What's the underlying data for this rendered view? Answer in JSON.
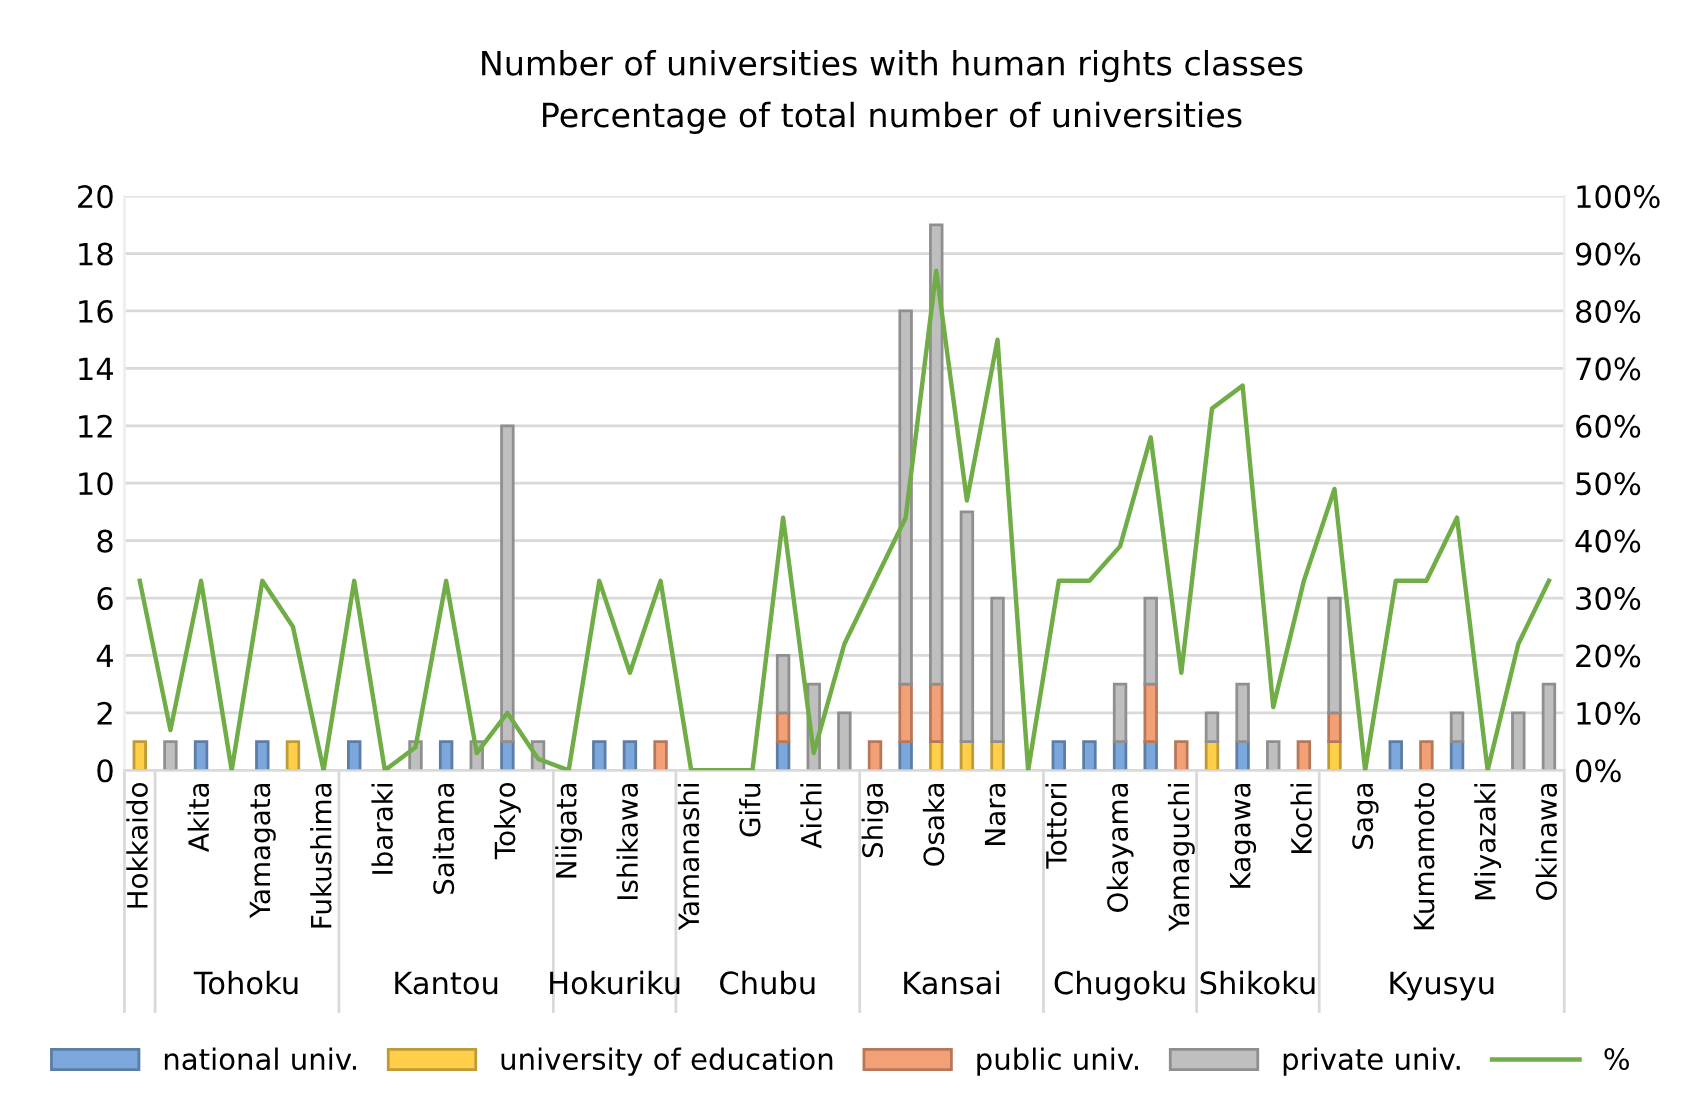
{
  "chart_data": {
    "type": "bar",
    "stacked": true,
    "title": "Number of universities with human rights classes",
    "subtitle": "Percentage of total number of universities",
    "categories": [
      "Hokkaido",
      null,
      "Akita",
      null,
      "Yamagata",
      null,
      "Fukushima",
      null,
      "Ibaraki",
      null,
      "Saitama",
      null,
      "Tokyo",
      null,
      "Niigata",
      null,
      "Ishikawa",
      null,
      "Yamanashi",
      null,
      "Gifu",
      null,
      "Aichi",
      null,
      "Shiga",
      null,
      "Osaka",
      null,
      "Nara",
      null,
      "Tottori",
      null,
      "Okayama",
      null,
      "Yamaguchi",
      null,
      "Kagawa",
      null,
      "Kochi",
      null,
      "Saga",
      null,
      "Kumamoto",
      null,
      "Miyazaki",
      null,
      "Okinawa"
    ],
    "series": [
      {
        "name": "national univ.",
        "color": "#7ba7dc",
        "values": [
          0,
          0,
          1,
          0,
          1,
          0,
          0,
          1,
          0,
          0,
          1,
          0,
          1,
          0,
          0,
          1,
          1,
          0,
          0,
          0,
          0,
          1,
          0,
          0,
          0,
          1,
          0,
          0,
          0,
          0,
          1,
          1,
          1,
          1,
          0,
          0,
          1,
          0,
          0,
          0,
          0,
          1,
          0,
          1,
          0,
          0,
          0
        ]
      },
      {
        "name": "university of education",
        "color": "#ffcf4a",
        "values": [
          1,
          0,
          0,
          0,
          0,
          1,
          0,
          0,
          0,
          0,
          0,
          0,
          0,
          0,
          0,
          0,
          0,
          0,
          0,
          0,
          0,
          0,
          0,
          0,
          0,
          0,
          1,
          1,
          1,
          0,
          0,
          0,
          0,
          0,
          0,
          1,
          0,
          0,
          0,
          1,
          0,
          0,
          0,
          0,
          0,
          0,
          0
        ]
      },
      {
        "name": "public univ.",
        "color": "#f4a077",
        "values": [
          0,
          0,
          0,
          0,
          0,
          0,
          0,
          0,
          0,
          0,
          0,
          0,
          0,
          0,
          0,
          0,
          0,
          1,
          0,
          0,
          0,
          1,
          0,
          0,
          1,
          2,
          2,
          0,
          0,
          0,
          0,
          0,
          0,
          2,
          1,
          0,
          0,
          0,
          1,
          1,
          0,
          0,
          1,
          0,
          0,
          0,
          0
        ]
      },
      {
        "name": "private univ.",
        "color": "#bfbfbf",
        "values": [
          0,
          1,
          0,
          0,
          0,
          0,
          0,
          0,
          0,
          1,
          0,
          1,
          11,
          1,
          0,
          0,
          0,
          0,
          0,
          0,
          0,
          2,
          3,
          2,
          0,
          13,
          16,
          8,
          5,
          0,
          0,
          0,
          2,
          3,
          0,
          1,
          2,
          1,
          0,
          4,
          0,
          0,
          0,
          1,
          0,
          2,
          3
        ]
      },
      {
        "name": "%",
        "type": "line",
        "axis": "y2",
        "color": "#70ad47",
        "values": [
          33,
          7,
          33,
          0,
          33,
          25,
          0,
          33,
          0,
          4,
          33,
          3,
          10,
          2,
          0,
          33,
          17,
          33,
          0,
          0,
          0,
          44,
          3,
          22,
          33,
          44,
          87,
          47,
          75,
          0,
          33,
          33,
          39,
          58,
          17,
          63,
          67,
          11,
          33,
          49,
          0,
          33,
          33,
          44,
          0,
          22,
          33
        ]
      }
    ],
    "annotations": [
      "Tohoku",
      "Kantou",
      "Hokuriku",
      "Chubu",
      "Kansai",
      "Chugoku",
      "Shikoku",
      "Kyusyu"
    ],
    "ylim": [
      0,
      20
    ],
    "yticks": [
      0,
      2,
      4,
      6,
      8,
      10,
      12,
      14,
      16,
      18,
      20
    ],
    "y2lim": [
      0,
      100
    ],
    "y2ticks": [
      {
        "value": 0,
        "label": "0%"
      },
      {
        "value": 10,
        "label": "10%"
      },
      {
        "value": 20,
        "label": "20%"
      },
      {
        "value": 30,
        "label": "30%"
      },
      {
        "value": 40,
        "label": "40%"
      },
      {
        "value": 50,
        "label": "50%"
      },
      {
        "value": 60,
        "label": "60%"
      },
      {
        "value": 70,
        "label": "70%"
      },
      {
        "value": 80,
        "label": "80%"
      },
      {
        "value": 90,
        "label": "90%"
      },
      {
        "value": 100,
        "label": "100%"
      }
    ],
    "grid": "y",
    "legend": "bottom",
    "marker": "none",
    "line_style": "solid"
  }
}
